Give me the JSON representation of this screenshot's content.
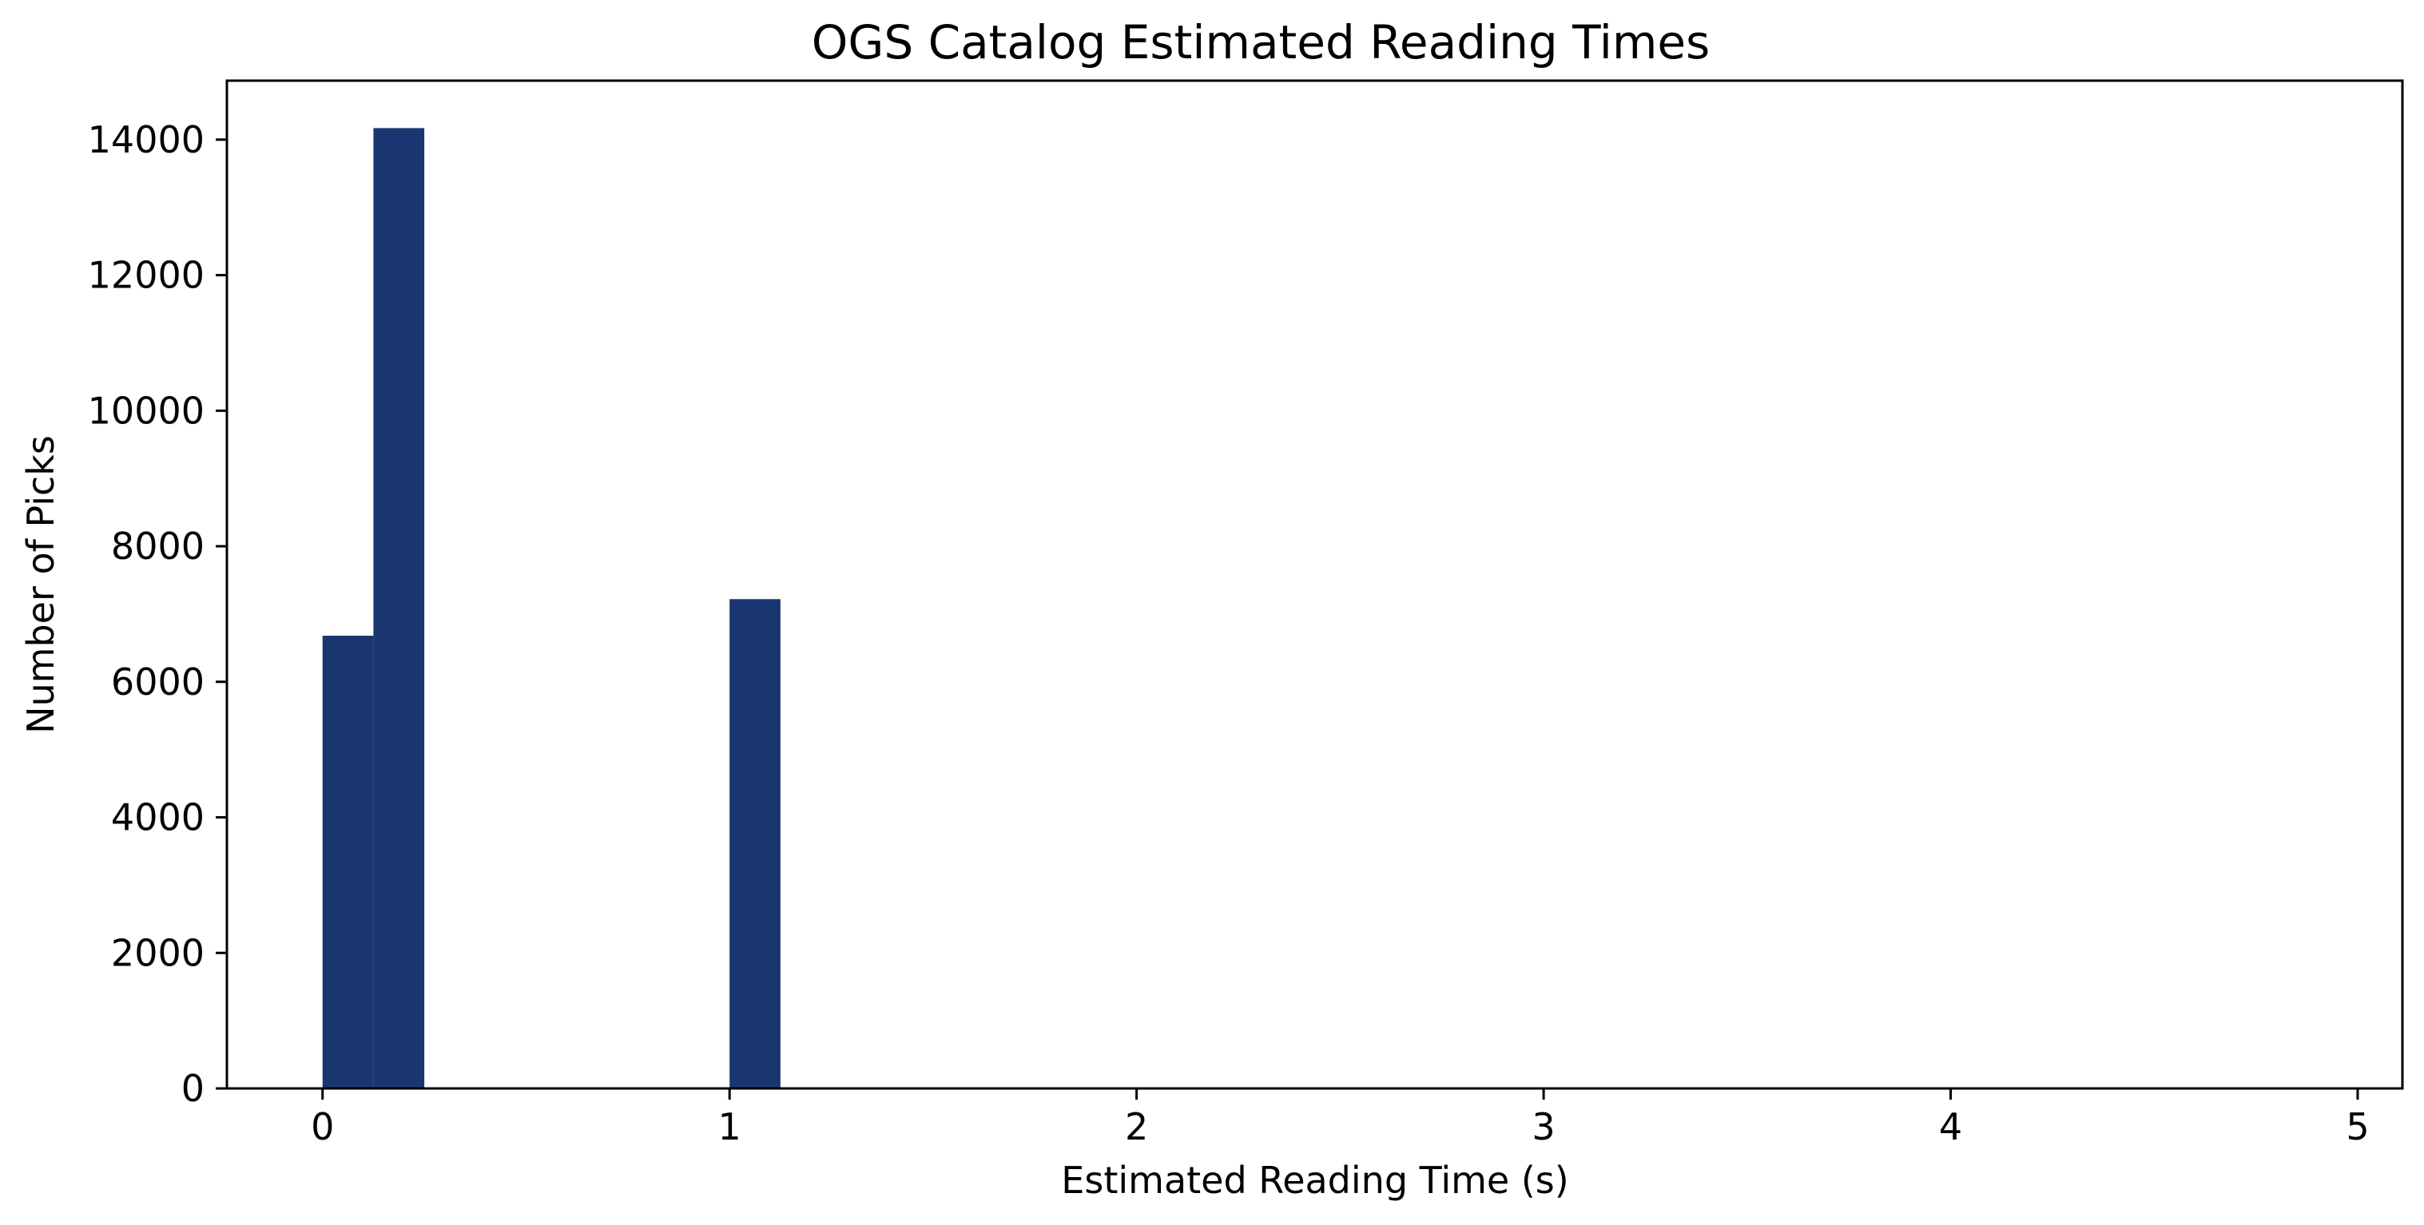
{
  "chart_data": {
    "type": "bar",
    "title": "OGS Catalog Estimated Reading Times",
    "xlabel": "Estimated Reading Time (s)",
    "ylabel": "Number of Picks",
    "xlim": [
      -0.235,
      5.11
    ],
    "ylim": [
      0,
      14870
    ],
    "x_ticks": [
      0,
      1,
      2,
      3,
      4,
      5
    ],
    "y_ticks": [
      0,
      2000,
      4000,
      6000,
      8000,
      10000,
      12000,
      14000
    ],
    "grid": false,
    "bar_color": "#1a3670",
    "bins": [
      {
        "x0": 0.0,
        "x1": 0.125,
        "value": 6680
      },
      {
        "x0": 0.125,
        "x1": 0.25,
        "value": 14170
      },
      {
        "x0": 1.0,
        "x1": 1.125,
        "value": 7220
      }
    ]
  }
}
